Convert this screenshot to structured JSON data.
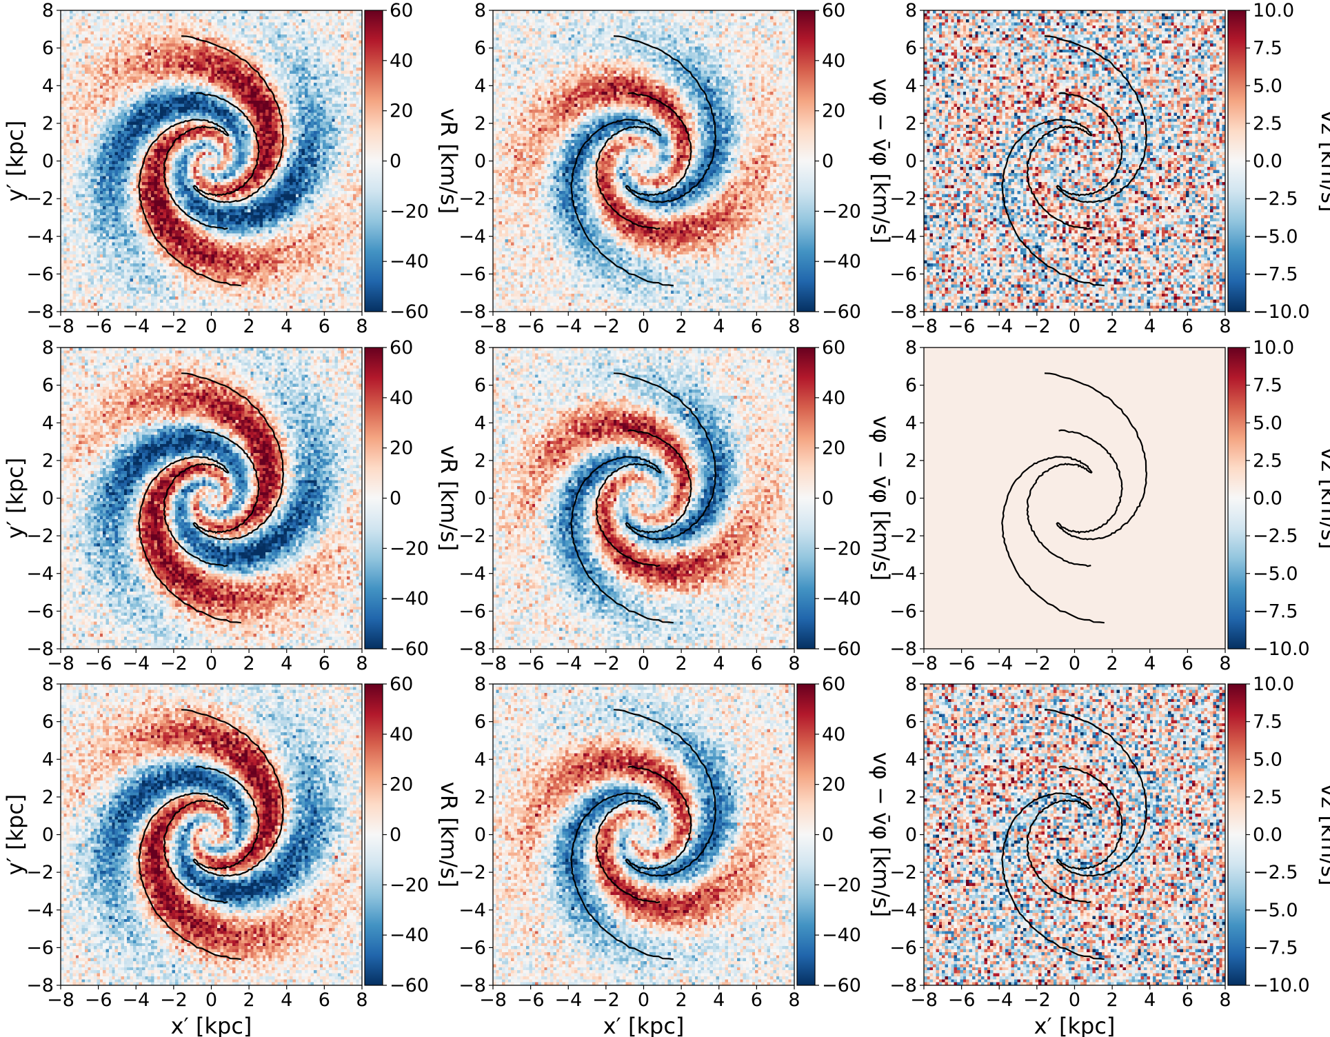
{
  "figure": {
    "rows": 3,
    "cols": 3,
    "description_free": true
  },
  "chart_data": [
    {
      "type": "heatmap",
      "row": 0,
      "col": 0,
      "field": "vR",
      "xlabel": "",
      "ylabel": "y′ [kpc]",
      "cbar_label": "vR [km/s]",
      "xlim": [
        -8,
        8
      ],
      "ylim": [
        -8,
        8
      ],
      "clim": [
        -60,
        60
      ],
      "noise": 10,
      "xticks": [],
      "yticks": [
        "−8",
        "−6",
        "−4",
        "−2",
        "0",
        "2",
        "4",
        "6",
        "8"
      ],
      "cbar_ticks": [
        "−60",
        "−40",
        "−20",
        "0",
        "20",
        "40",
        "60"
      ]
    },
    {
      "type": "heatmap",
      "row": 0,
      "col": 1,
      "field": "vphi",
      "xlabel": "",
      "ylabel": "",
      "cbar_label": "vφ − v̄φ [km/s]",
      "xlim": [
        -8,
        8
      ],
      "ylim": [
        -8,
        8
      ],
      "clim": [
        -60,
        60
      ],
      "noise": 10,
      "xticks": [],
      "yticks": [
        "−8",
        "−6",
        "−4",
        "−2",
        "0",
        "2",
        "4",
        "6",
        "8"
      ],
      "cbar_ticks": [
        "−60",
        "−40",
        "−20",
        "0",
        "20",
        "40",
        "60"
      ]
    },
    {
      "type": "heatmap",
      "row": 0,
      "col": 2,
      "field": "vz",
      "xlabel": "",
      "ylabel": "",
      "cbar_label": "vz [km/s]",
      "xlim": [
        -8,
        8
      ],
      "ylim": [
        -8,
        8
      ],
      "clim": [
        -10,
        10
      ],
      "noise": 4,
      "xticks": [],
      "yticks": [
        "−8",
        "−6",
        "−4",
        "−2",
        "0",
        "2",
        "4",
        "6",
        "8"
      ],
      "cbar_ticks": [
        "−10.0",
        "−7.5",
        "−5.0",
        "−2.5",
        "0.0",
        "2.5",
        "5.0",
        "7.5",
        "10.0"
      ]
    },
    {
      "type": "heatmap",
      "row": 1,
      "col": 0,
      "field": "vR",
      "xlabel": "",
      "ylabel": "y′ [kpc]",
      "cbar_label": "vR [km/s]",
      "xlim": [
        -8,
        8
      ],
      "ylim": [
        -8,
        8
      ],
      "clim": [
        -60,
        60
      ],
      "noise": 10,
      "xticks": [],
      "yticks": [
        "−8",
        "−6",
        "−4",
        "−2",
        "0",
        "2",
        "4",
        "6",
        "8"
      ],
      "cbar_ticks": [
        "−60",
        "−40",
        "−20",
        "0",
        "20",
        "40",
        "60"
      ]
    },
    {
      "type": "heatmap",
      "row": 1,
      "col": 1,
      "field": "vphi",
      "xlabel": "",
      "ylabel": "",
      "cbar_label": "vφ − v̄φ [km/s]",
      "xlim": [
        -8,
        8
      ],
      "ylim": [
        -8,
        8
      ],
      "clim": [
        -60,
        60
      ],
      "noise": 10,
      "xticks": [],
      "yticks": [
        "−8",
        "−6",
        "−4",
        "−2",
        "0",
        "2",
        "4",
        "6",
        "8"
      ],
      "cbar_ticks": [
        "−60",
        "−40",
        "−20",
        "0",
        "20",
        "40",
        "60"
      ]
    },
    {
      "type": "heatmap",
      "row": 1,
      "col": 2,
      "field": "zero",
      "xlabel": "",
      "ylabel": "",
      "cbar_label": "vz [km/s]",
      "xlim": [
        -8,
        8
      ],
      "ylim": [
        -8,
        8
      ],
      "clim": [
        -10,
        10
      ],
      "noise": 0,
      "xticks": [],
      "yticks": [
        "−8",
        "−6",
        "−4",
        "−2",
        "0",
        "2",
        "4",
        "6",
        "8"
      ],
      "cbar_ticks": [
        "−10.0",
        "−7.5",
        "−5.0",
        "−2.5",
        "0.0",
        "2.5",
        "5.0",
        "7.5",
        "10.0"
      ]
    },
    {
      "type": "heatmap",
      "row": 2,
      "col": 0,
      "field": "vR",
      "xlabel": "x′ [kpc]",
      "ylabel": "y′ [kpc]",
      "cbar_label": "vR [km/s]",
      "xlim": [
        -8,
        8
      ],
      "ylim": [
        -8,
        8
      ],
      "clim": [
        -60,
        60
      ],
      "noise": 10,
      "xticks": [
        "−8",
        "−6",
        "−4",
        "−2",
        "0",
        "2",
        "4",
        "6",
        "8"
      ],
      "yticks": [
        "−8",
        "−6",
        "−4",
        "−2",
        "0",
        "2",
        "4",
        "6",
        "8"
      ],
      "cbar_ticks": [
        "−60",
        "−40",
        "−20",
        "0",
        "20",
        "40",
        "60"
      ]
    },
    {
      "type": "heatmap",
      "row": 2,
      "col": 1,
      "field": "vphi",
      "xlabel": "x′ [kpc]",
      "ylabel": "",
      "cbar_label": "vφ − v̄φ [km/s]",
      "xlim": [
        -8,
        8
      ],
      "ylim": [
        -8,
        8
      ],
      "clim": [
        -60,
        60
      ],
      "noise": 10,
      "xticks": [
        "−8",
        "−6",
        "−4",
        "−2",
        "0",
        "2",
        "4",
        "6",
        "8"
      ],
      "yticks": [
        "−8",
        "−6",
        "−4",
        "−2",
        "0",
        "2",
        "4",
        "6",
        "8"
      ],
      "cbar_ticks": [
        "−60",
        "−40",
        "−20",
        "0",
        "20",
        "40",
        "60"
      ]
    },
    {
      "type": "heatmap",
      "row": 2,
      "col": 2,
      "field": "vz",
      "xlabel": "x′ [kpc]",
      "ylabel": "",
      "cbar_label": "vz [km/s]",
      "xlim": [
        -8,
        8
      ],
      "ylim": [
        -8,
        8
      ],
      "clim": [
        -10,
        10
      ],
      "noise": 4,
      "xticks": [
        "−8",
        "−6",
        "−4",
        "−2",
        "0",
        "2",
        "4",
        "6",
        "8"
      ],
      "yticks": [
        "−8",
        "−6",
        "−4",
        "−2",
        "0",
        "2",
        "4",
        "6",
        "8"
      ],
      "cbar_ticks": [
        "−10.0",
        "−7.5",
        "−5.0",
        "−2.5",
        "0.0",
        "2.5",
        "5.0",
        "7.5",
        "10.0"
      ]
    }
  ],
  "xtick_values": [
    -8,
    -6,
    -4,
    -2,
    0,
    2,
    4,
    6,
    8
  ],
  "spiral_contour": {
    "units": "kpc",
    "arm_outer_radius": 6.8,
    "arm_inner_radius": 1.6,
    "pitch_deg": 20
  },
  "colormap": {
    "name": "RdBu_r",
    "stops": [
      "#053061",
      "#2166ac",
      "#4393c3",
      "#92c5de",
      "#d1e5f0",
      "#f7f7f7",
      "#fddbc7",
      "#f4a582",
      "#d6604d",
      "#b2182b",
      "#67001f"
    ]
  }
}
